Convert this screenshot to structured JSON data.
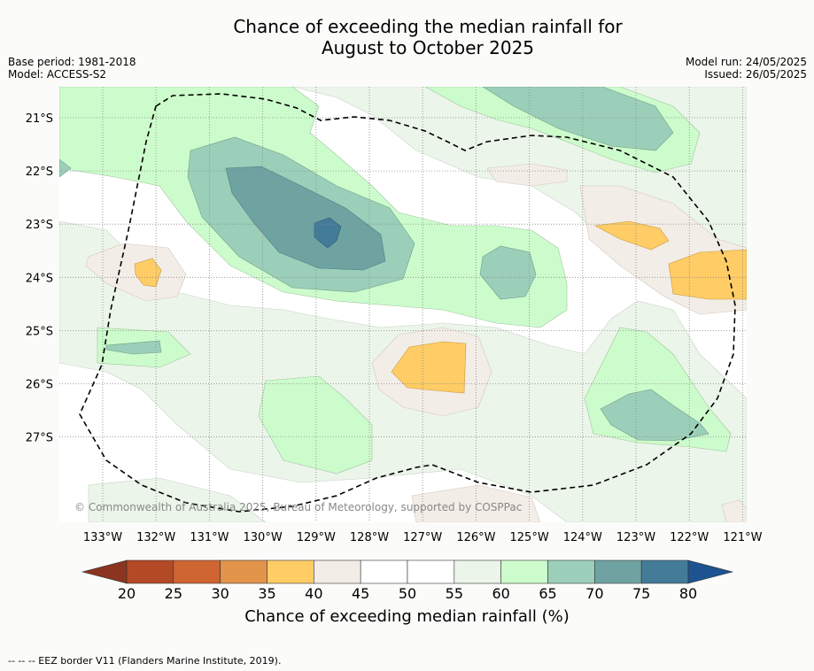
{
  "title_line1": "Chance of exceeding the median rainfall for",
  "title_line2": "August to October 2025",
  "meta_left": {
    "base_period": "Base period: 1981-2018",
    "model": "Model: ACCESS-S2"
  },
  "meta_right": {
    "model_run": "Model run: 24/05/2025",
    "issued": "Issued: 26/05/2025"
  },
  "copyright": "© Commonwealth of Australia 2025, Bureau of Meteorology, supported by COSPPac",
  "longitude_labels": [
    "133°W",
    "132°W",
    "131°W",
    "130°W",
    "129°W",
    "128°W",
    "127°W",
    "126°W",
    "125°W",
    "124°W",
    "123°W",
    "122°W",
    "121°W"
  ],
  "latitude_labels": [
    "21°S",
    "22°S",
    "23°S",
    "24°S",
    "25°S",
    "26°S",
    "27°S"
  ],
  "colorbar": {
    "ticks": [
      "20",
      "25",
      "30",
      "35",
      "40",
      "45",
      "50",
      "55",
      "60",
      "65",
      "70",
      "75",
      "80"
    ],
    "colors": [
      "#b34a25",
      "#cf6533",
      "#e1944a",
      "#ffcc66",
      "#f3ede7",
      "#ffffff",
      "#ffffff",
      "#ebf5e9",
      "#cdfccc",
      "#9ccfb9",
      "#6fa3a2",
      "#437b98"
    ],
    "low_extend_color": "#8b3520",
    "high_extend_color": "#1d5391",
    "label": "Chance of exceeding median rainfall (%)"
  },
  "footer": "--  --  -- EEZ border V11 (Flanders Marine Institute, 2019)."
}
